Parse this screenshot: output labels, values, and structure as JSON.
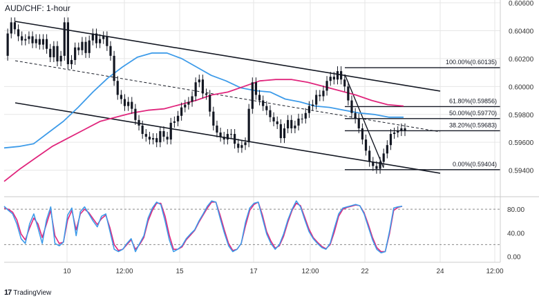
{
  "title": "AUD/CHF: 1-hour",
  "watermark": "TradingView",
  "colors": {
    "price": "#131722",
    "ma_fast": "#3d9be9",
    "ma_slow": "#e0257c",
    "stoch_k": "#3d9be9",
    "stoch_d": "#e0257c",
    "grid": "#e6e6e6",
    "axis_text": "#333333"
  },
  "chart_data": [
    {
      "type": "line",
      "title": "AUD/CHF: 1-hour",
      "x_ticks": [
        "10",
        "12:00",
        "15",
        "17",
        "12:00",
        "22",
        "24",
        "12:00"
      ],
      "y_ticks": [
        "0.60600",
        "0.60400",
        "0.60200",
        "0.60000",
        "0.59800",
        "0.59600",
        "0.59400"
      ],
      "ylim": [
        0.5922,
        0.6062
      ],
      "grid": true,
      "series": [
        {
          "name": "",
          "role": "price",
          "values": [
            0.6022,
            0.6038,
            0.6046,
            0.6041,
            0.6036,
            0.6033,
            0.6034,
            0.6036,
            0.6031,
            0.6034,
            0.603,
            0.6034,
            0.6027,
            0.6021,
            0.6029,
            0.6018,
            0.6022,
            0.6046,
            0.6016,
            0.6019,
            0.6028,
            0.6026,
            0.6032,
            0.6024,
            0.6033,
            0.6038,
            0.6031,
            0.6034,
            0.6036,
            0.6029,
            0.6022,
            0.6004,
            0.5994,
            0.5991,
            0.5986,
            0.5989,
            0.5984,
            0.5976,
            0.5972,
            0.5966,
            0.5964,
            0.5962,
            0.5963,
            0.596,
            0.5968,
            0.5964,
            0.5962,
            0.5974,
            0.5975,
            0.5979,
            0.5985,
            0.5987,
            0.5989,
            0.5993,
            0.6003,
            0.6005,
            0.5995,
            0.5994,
            0.5982,
            0.5972,
            0.5967,
            0.5964,
            0.5962,
            0.5966,
            0.5966,
            0.5959,
            0.5956,
            0.5958,
            0.596,
            0.5984,
            0.6003,
            0.5994,
            0.599,
            0.5986,
            0.5983,
            0.5978,
            0.5975,
            0.5973,
            0.5963,
            0.597,
            0.5976,
            0.597,
            0.5972,
            0.5977,
            0.5977,
            0.5981,
            0.5986,
            0.5987,
            0.5994,
            0.5993,
            0.5997,
            0.6004,
            0.6007,
            0.6005,
            0.6011,
            0.6005,
            0.6,
            0.599,
            0.5981,
            0.5977,
            0.597,
            0.5962,
            0.5954,
            0.5946,
            0.5943,
            0.5941,
            0.5946,
            0.5952,
            0.5958,
            0.5966,
            0.5967,
            0.5968,
            0.597,
            0.5968
          ]
        },
        {
          "name": "",
          "role": "moving average (blue)",
          "values": [
            0.5956,
            0.5957,
            0.5959,
            0.5967,
            0.5975,
            0.5985,
            0.5996,
            0.6006,
            0.6014,
            0.6021,
            0.6024,
            0.6024,
            0.602,
            0.6014,
            0.6008,
            0.6004,
            0.5999,
            0.5997,
            0.5996,
            0.5991,
            0.5989,
            0.5986,
            0.5985,
            0.5983,
            0.5981,
            0.598,
            0.5978,
            0.5978
          ]
        },
        {
          "name": "",
          "role": "moving average (pink)",
          "values": [
            0.5932,
            0.5941,
            0.5949,
            0.5957,
            0.5963,
            0.5969,
            0.5975,
            0.5978,
            0.5981,
            0.5983,
            0.5984,
            0.5987,
            0.599,
            0.5994,
            0.5996,
            0.6,
            0.6004,
            0.6005,
            0.6005,
            0.6003,
            0.6,
            0.5997,
            0.5994,
            0.599,
            0.5987,
            0.5986
          ]
        }
      ],
      "fib_levels": [
        {
          "label": "100.00%(0.60135)",
          "value": 0.60135
        },
        {
          "label": "61.80%(0.59856)",
          "value": 0.59856
        },
        {
          "label": "50.00%(0.59770)",
          "value": 0.5977
        },
        {
          "label": "38.20%(0.59683)",
          "value": 0.59683
        },
        {
          "label": "0.00%(0.59404)",
          "value": 0.59404
        }
      ]
    },
    {
      "type": "line",
      "title": "",
      "y_ticks": [
        "80.00",
        "40.00",
        "0.00"
      ],
      "ylim": [
        -10,
        100
      ],
      "reference_lines": [
        80,
        20
      ],
      "series": [
        {
          "name": "",
          "role": "stochastic %K",
          "values": [
            85,
            78,
            72,
            55,
            30,
            22,
            55,
            72,
            48,
            22,
            62,
            84,
            22,
            18,
            24,
            70,
            82,
            35,
            76,
            84,
            72,
            60,
            50,
            68,
            72,
            42,
            12,
            8,
            12,
            22,
            30,
            8,
            22,
            35,
            65,
            82,
            92,
            88,
            60,
            28,
            8,
            12,
            18,
            30,
            38,
            45,
            60,
            72,
            85,
            94,
            92,
            65,
            40,
            18,
            8,
            12,
            22,
            58,
            82,
            90,
            92,
            65,
            38,
            22,
            12,
            20,
            38,
            62,
            80,
            94,
            84,
            62,
            42,
            30,
            22,
            15,
            12,
            22,
            48,
            72,
            82,
            84,
            86,
            88,
            86,
            72,
            50,
            28,
            12,
            6,
            8,
            42,
            82,
            84,
            85
          ]
        },
        {
          "name": "",
          "role": "stochastic %D",
          "values": [
            82,
            80,
            75,
            62,
            38,
            28,
            48,
            65,
            55,
            32,
            55,
            78,
            35,
            22,
            24,
            62,
            78,
            45,
            72,
            80,
            74,
            64,
            54,
            64,
            70,
            48,
            20,
            10,
            12,
            20,
            28,
            12,
            20,
            32,
            60,
            78,
            90,
            90,
            68,
            36,
            12,
            12,
            16,
            28,
            36,
            44,
            58,
            70,
            82,
            92,
            92,
            70,
            45,
            22,
            10,
            12,
            22,
            52,
            78,
            88,
            92,
            70,
            42,
            26,
            14,
            18,
            34,
            58,
            78,
            90,
            86,
            66,
            46,
            32,
            24,
            17,
            13,
            20,
            42,
            68,
            80,
            83,
            85,
            87,
            86,
            74,
            54,
            32,
            15,
            8,
            8,
            38,
            78,
            83,
            85
          ]
        }
      ]
    }
  ]
}
